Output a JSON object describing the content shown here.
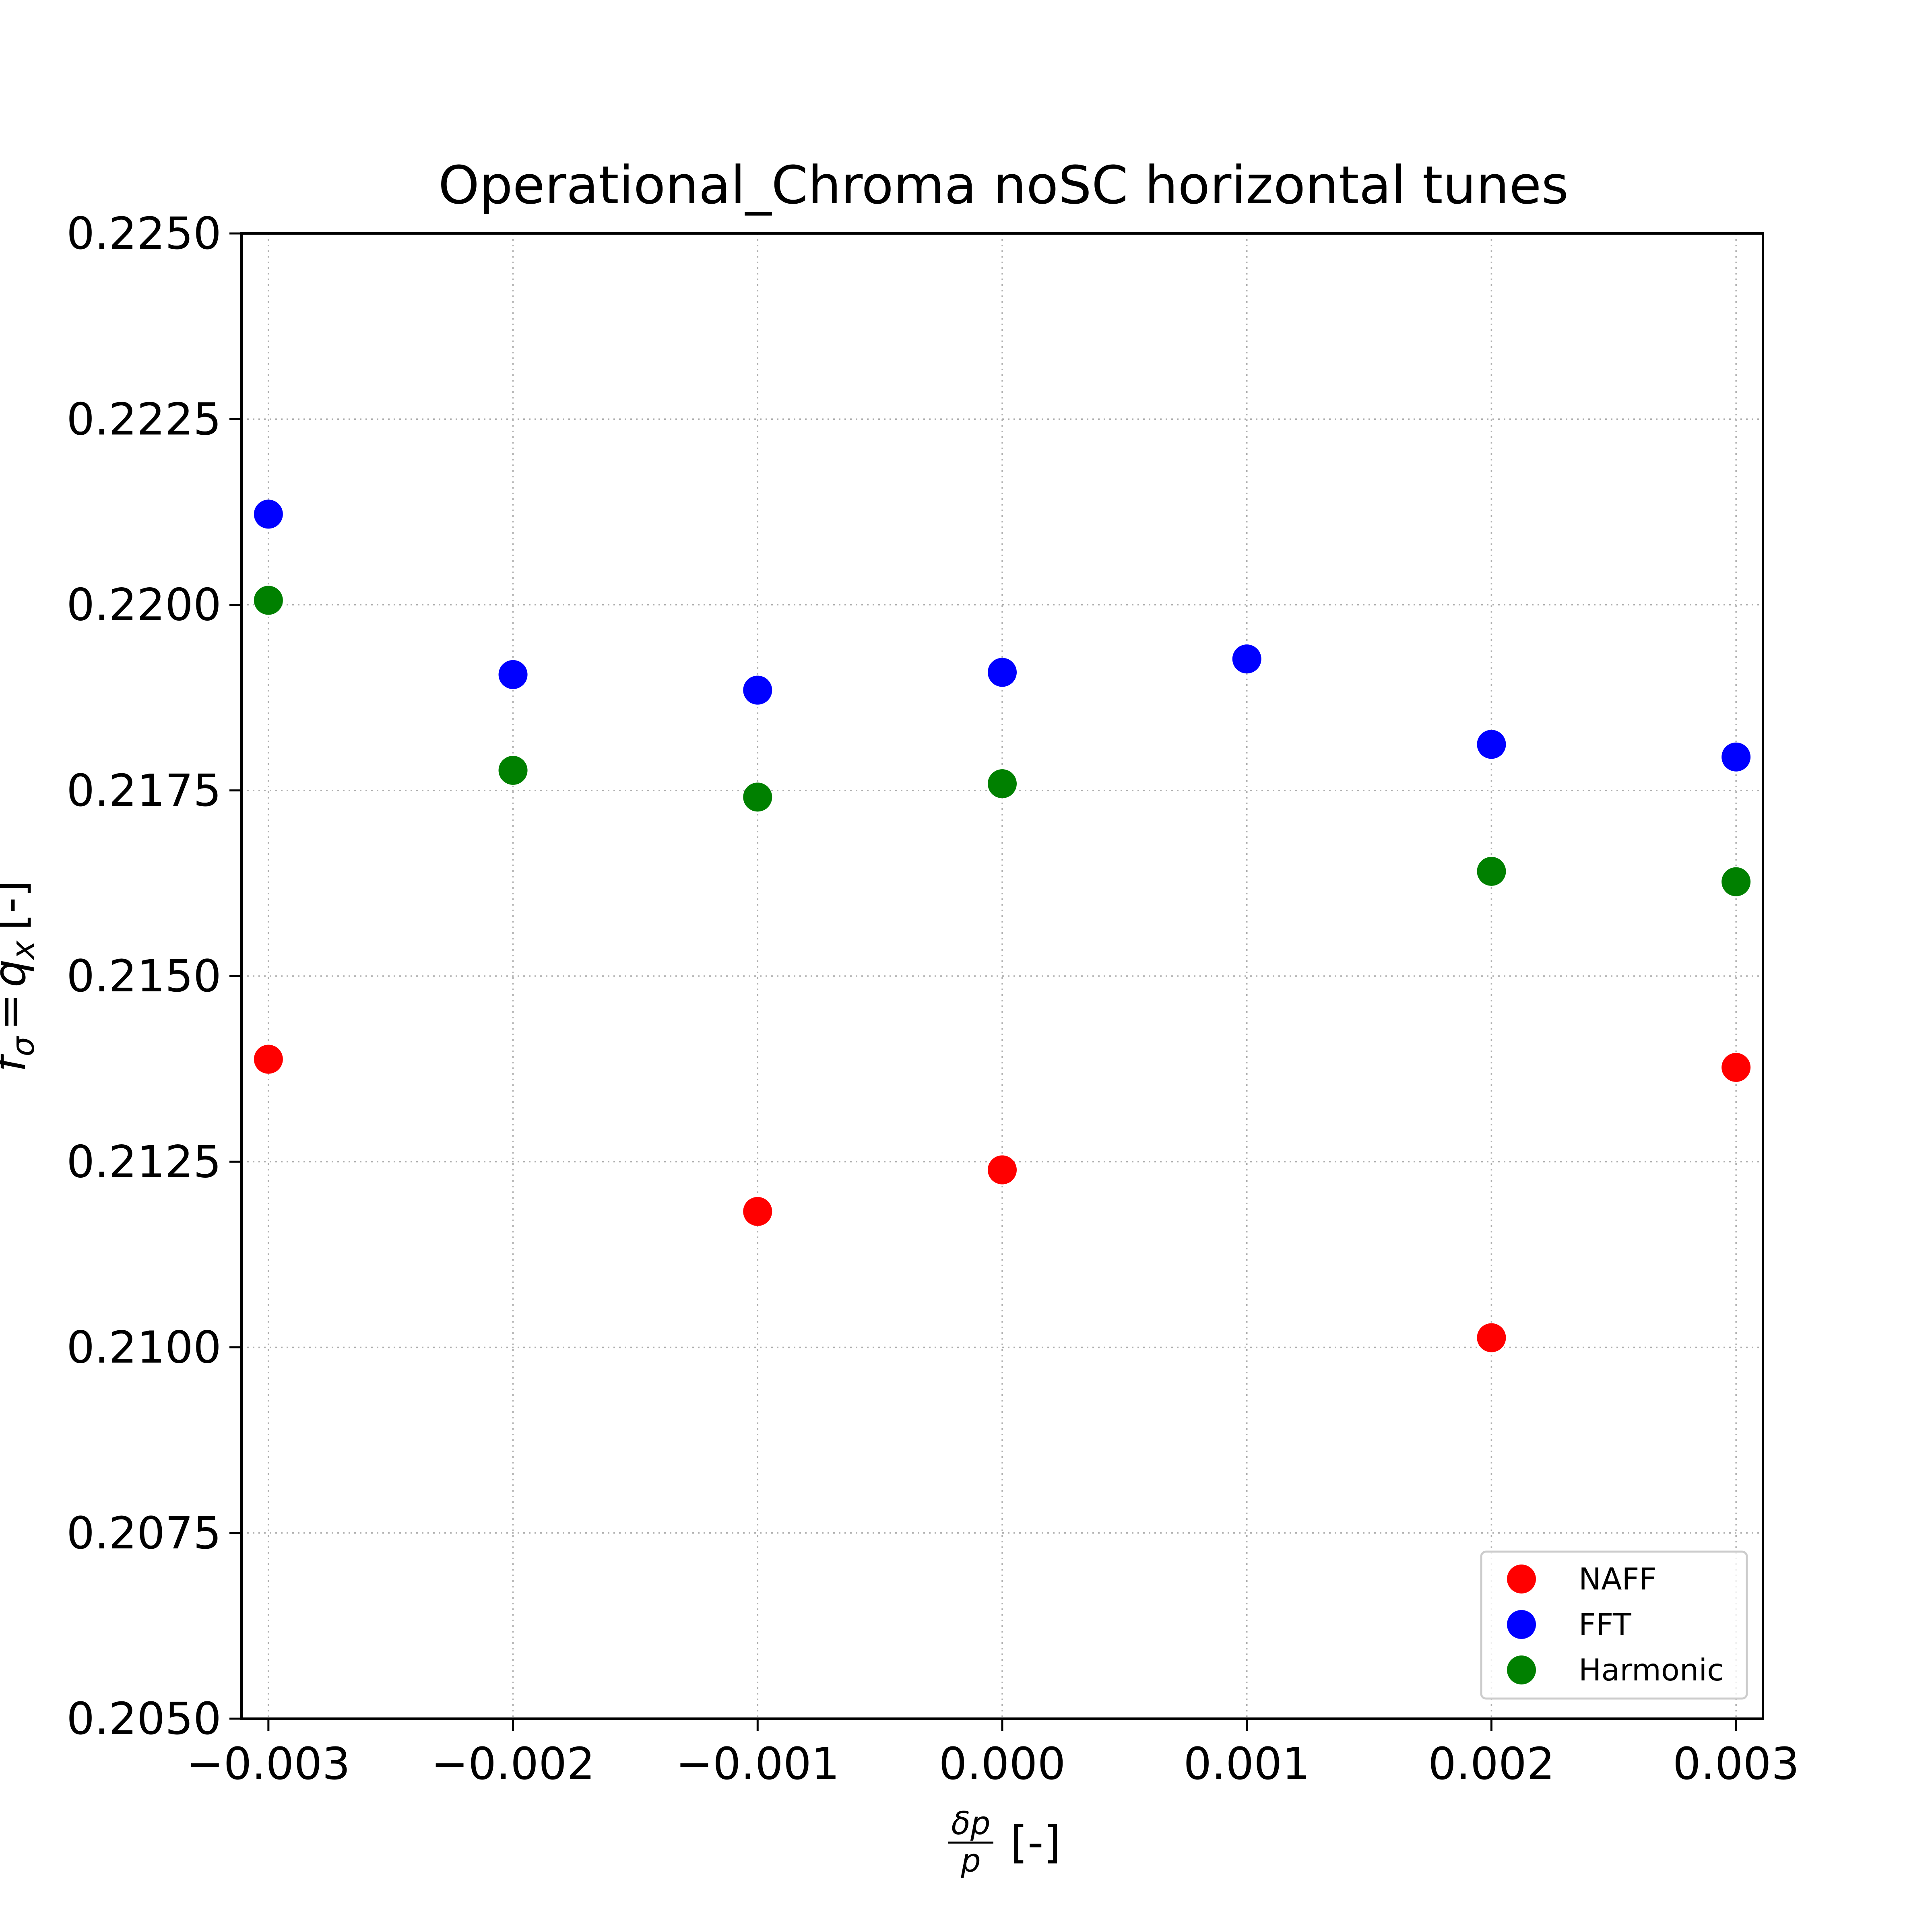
{
  "chart_data": {
    "type": "scatter",
    "title": "Operational_Chroma noSC horizontal tunes",
    "xlabel": {
      "fraction_numerator": "δp",
      "fraction_denominator": "p",
      "unit": "[-]"
    },
    "ylabel": {
      "symbol": "f",
      "subscript": "σ",
      "equals": "=",
      "symbol2": "q",
      "subscript2": "x",
      "unit": "[-]"
    },
    "xlim": [
      -0.00311,
      0.00311
    ],
    "ylim": [
      0.205,
      0.225
    ],
    "x_ticks": [
      -0.003,
      -0.002,
      -0.001,
      0.0,
      0.001,
      0.002,
      0.003
    ],
    "x_tick_labels": [
      "−0.003",
      "−0.002",
      "−0.001",
      "0.000",
      "0.001",
      "0.002",
      "0.003"
    ],
    "y_ticks": [
      0.205,
      0.2075,
      0.21,
      0.2125,
      0.215,
      0.2175,
      0.22,
      0.2225,
      0.225
    ],
    "y_tick_labels": [
      "0.2050",
      "0.2075",
      "0.2100",
      "0.2125",
      "0.2150",
      "0.2175",
      "0.2200",
      "0.2225",
      "0.2250"
    ],
    "grid": true,
    "legend_position": "bottom-right",
    "series": [
      {
        "name": "NAFF",
        "color": "#ff0000",
        "points": [
          {
            "x": -0.003,
            "y": 0.21388
          },
          {
            "x": -0.001,
            "y": 0.21183
          },
          {
            "x": 0.0,
            "y": 0.21239
          },
          {
            "x": 0.002,
            "y": 0.21013
          },
          {
            "x": 0.003,
            "y": 0.21377
          }
        ]
      },
      {
        "name": "FFT",
        "color": "#0000ff",
        "points": [
          {
            "x": -0.003,
            "y": 0.22122
          },
          {
            "x": -0.002,
            "y": 0.21906
          },
          {
            "x": -0.001,
            "y": 0.21885
          },
          {
            "x": 0.0,
            "y": 0.21909
          },
          {
            "x": 0.001,
            "y": 0.21927
          },
          {
            "x": 0.002,
            "y": 0.21812
          },
          {
            "x": 0.003,
            "y": 0.21795
          }
        ]
      },
      {
        "name": "Harmonic",
        "color": "#008000",
        "points": [
          {
            "x": -0.003,
            "y": 0.22006
          },
          {
            "x": -0.002,
            "y": 0.21777
          },
          {
            "x": -0.001,
            "y": 0.21741
          },
          {
            "x": 0.0,
            "y": 0.21759
          },
          {
            "x": 0.002,
            "y": 0.21641
          },
          {
            "x": 0.003,
            "y": 0.21627
          }
        ]
      }
    ]
  }
}
